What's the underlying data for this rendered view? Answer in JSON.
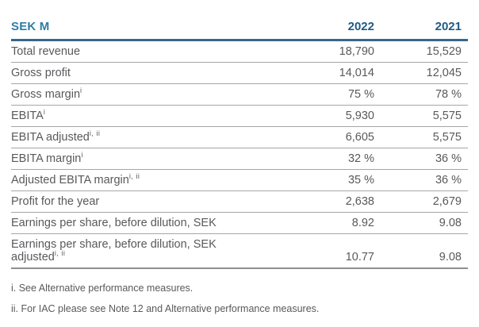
{
  "colors": {
    "accent_teal": "#2E7DA6",
    "year_navy": "#1F5A82",
    "header_rule": "#35688A",
    "row_rule": "#A6A6A6",
    "bottom_rule": "#8F8F8F",
    "body_text": "#58595C",
    "background": "#FFFFFF"
  },
  "table": {
    "unit_label": "SEK M",
    "columns": [
      "2022",
      "2021"
    ],
    "rows": [
      {
        "label": "Total revenue",
        "sup": "",
        "values": [
          "18,790",
          "15,529"
        ]
      },
      {
        "label": "Gross profit",
        "sup": "",
        "values": [
          "14,014",
          "12,045"
        ]
      },
      {
        "label": "Gross margin",
        "sup": "i",
        "values": [
          "75 %",
          "78 %"
        ]
      },
      {
        "label": "EBITA",
        "sup": "i",
        "values": [
          "5,930",
          "5,575"
        ]
      },
      {
        "label": "EBITA adjusted",
        "sup": "i, ii",
        "values": [
          "6,605",
          "5,575"
        ]
      },
      {
        "label": "EBITA margin",
        "sup": "i",
        "values": [
          "32 %",
          "36 %"
        ]
      },
      {
        "label": "Adjusted EBITA margin",
        "sup": "i, ii",
        "values": [
          "35 %",
          "36 %"
        ]
      },
      {
        "label": "Profit for the year",
        "sup": "",
        "values": [
          "2,638",
          "2,679"
        ]
      },
      {
        "label": "Earnings per share, before dilution, SEK",
        "sup": "",
        "values": [
          "8.92",
          "9.08"
        ]
      },
      {
        "label": "Earnings per share, before dilution, SEK",
        "label_line2": "adjusted",
        "sup": "i, ii",
        "values": [
          "10.77",
          "9.08"
        ]
      }
    ],
    "footnotes": [
      "i. See Alternative performance measures.",
      "ii. For IAC please see Note 12 and Alternative performance measures."
    ]
  }
}
